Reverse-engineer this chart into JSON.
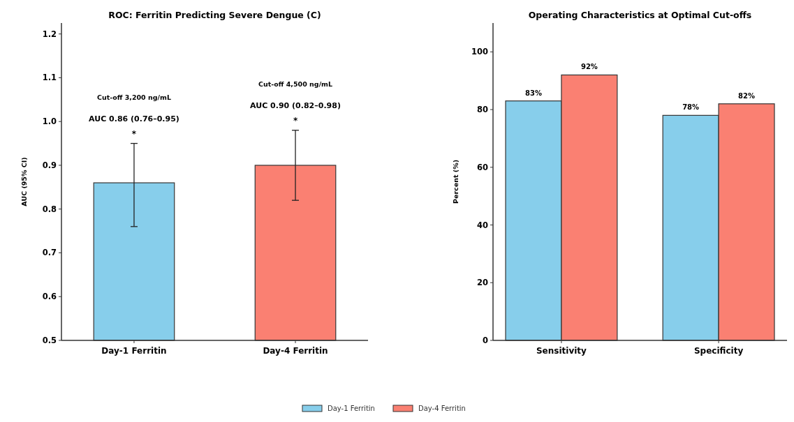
{
  "chart_data": [
    {
      "type": "bar",
      "title": "ROC: Ferritin Predicting Severe Dengue (C)",
      "ylabel": "AUC (95% CI)",
      "categories": [
        "Day-1 Ferritin",
        "Day-4 Ferritin"
      ],
      "values": [
        0.86,
        0.9
      ],
      "colors": [
        "#87ceeb",
        "#fa8072"
      ],
      "errors": [
        [
          0.76,
          0.95
        ],
        [
          0.82,
          0.98
        ]
      ],
      "ylim": [
        0.5,
        1.225
      ],
      "yticks": [
        0.5,
        0.6,
        0.7,
        0.8,
        0.9,
        {
          "value": 1.0,
          "label": "1.0"
        },
        1.1,
        1.2
      ],
      "annotations": [
        "Cut-off 3,200 ng/mL",
        "AUC 0.86 (0.76–0.95)",
        "*",
        "Cut-off 4,500 ng/mL",
        "AUC 0.90 (0.82–0.98)",
        "*"
      ]
    },
    {
      "type": "bar",
      "title": "Operating Characteristics at Optimal Cut-offs",
      "ylabel": "Percent (%)",
      "categories": [
        "Sensitivity",
        "Specificity"
      ],
      "legend": "bottom",
      "ylim": [
        0,
        110
      ],
      "yticks": [
        0,
        20,
        40,
        60,
        80,
        100
      ],
      "series": [
        {
          "name": "Day-1 Ferritin",
          "color": "#87ceeb",
          "values": [
            83,
            78
          ],
          "value_labels": [
            "83%",
            "78%"
          ]
        },
        {
          "name": "Day-4 Ferritin",
          "color": "#fa8072",
          "values": [
            92,
            82
          ],
          "value_labels": [
            "92%",
            "82%"
          ]
        }
      ]
    }
  ]
}
